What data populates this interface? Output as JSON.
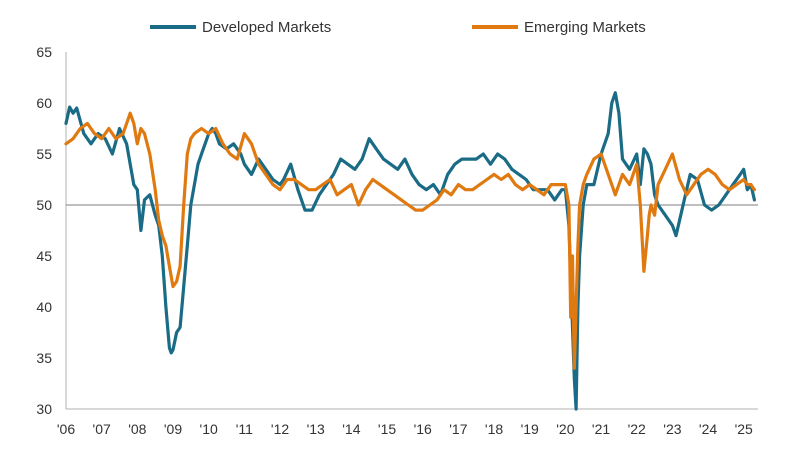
{
  "chart_data": {
    "type": "line",
    "title": "",
    "xlabel": "",
    "ylabel": "",
    "ylim": [
      30,
      65
    ],
    "xlim": [
      2006,
      2025.4
    ],
    "reference_line": 50,
    "y_ticks": [
      30,
      35,
      40,
      45,
      50,
      55,
      60,
      65
    ],
    "x_ticks": [
      {
        "value": 2006,
        "label": "'06"
      },
      {
        "value": 2007,
        "label": "'07"
      },
      {
        "value": 2008,
        "label": "'08"
      },
      {
        "value": 2009,
        "label": "'09"
      },
      {
        "value": 2010,
        "label": "'10"
      },
      {
        "value": 2011,
        "label": "'11"
      },
      {
        "value": 2012,
        "label": "'12"
      },
      {
        "value": 2013,
        "label": "'13"
      },
      {
        "value": 2014,
        "label": "'14"
      },
      {
        "value": 2015,
        "label": "'15"
      },
      {
        "value": 2016,
        "label": "'16"
      },
      {
        "value": 2017,
        "label": "'17"
      },
      {
        "value": 2018,
        "label": "'18"
      },
      {
        "value": 2019,
        "label": "'19"
      },
      {
        "value": 2020,
        "label": "'20"
      },
      {
        "value": 2021,
        "label": "'21"
      },
      {
        "value": 2022,
        "label": "'22"
      },
      {
        "value": 2023,
        "label": "'23"
      },
      {
        "value": 2024,
        "label": "'24"
      },
      {
        "value": 2025,
        "label": "'25"
      }
    ],
    "legend_position": "top-center",
    "series": [
      {
        "name": "Developed Markets",
        "color": "#1a6b86",
        "x": [
          2006.0,
          2006.1,
          2006.2,
          2006.3,
          2006.5,
          2006.7,
          2006.9,
          2007.1,
          2007.3,
          2007.5,
          2007.7,
          2007.8,
          2007.9,
          2008.0,
          2008.1,
          2008.2,
          2008.35,
          2008.5,
          2008.6,
          2008.7,
          2008.8,
          2008.9,
          2008.95,
          2009.0,
          2009.1,
          2009.2,
          2009.3,
          2009.4,
          2009.5,
          2009.6,
          2009.7,
          2009.8,
          2009.9,
          2010.0,
          2010.1,
          2010.2,
          2010.3,
          2010.5,
          2010.7,
          2010.9,
          2011.0,
          2011.2,
          2011.4,
          2011.6,
          2011.8,
          2012.0,
          2012.1,
          2012.3,
          2012.5,
          2012.7,
          2012.9,
          2013.1,
          2013.3,
          2013.5,
          2013.7,
          2013.9,
          2014.1,
          2014.3,
          2014.5,
          2014.7,
          2014.9,
          2015.1,
          2015.3,
          2015.5,
          2015.7,
          2015.9,
          2016.1,
          2016.3,
          2016.5,
          2016.7,
          2016.9,
          2017.1,
          2017.3,
          2017.5,
          2017.7,
          2017.9,
          2018.1,
          2018.3,
          2018.5,
          2018.7,
          2018.9,
          2019.1,
          2019.3,
          2019.5,
          2019.7,
          2019.9,
          2020.0,
          2020.1,
          2020.2,
          2020.25,
          2020.3,
          2020.35,
          2020.4,
          2020.5,
          2020.6,
          2020.8,
          2021.0,
          2021.2,
          2021.3,
          2021.4,
          2021.5,
          2021.6,
          2021.8,
          2022.0,
          2022.1,
          2022.2,
          2022.3,
          2022.4,
          2022.5,
          2022.6,
          2022.8,
          2023.0,
          2023.1,
          2023.3,
          2023.5,
          2023.7,
          2023.9,
          2024.1,
          2024.3,
          2024.5,
          2024.7,
          2024.9,
          2025.0,
          2025.1,
          2025.2,
          2025.3
        ],
        "values": [
          58.0,
          59.6,
          59.0,
          59.5,
          57.0,
          56.0,
          57.0,
          56.5,
          55.0,
          57.5,
          56.0,
          54.0,
          52.0,
          51.5,
          47.5,
          50.5,
          51.0,
          49.0,
          48.0,
          45.0,
          40.0,
          36.0,
          35.5,
          35.8,
          37.5,
          38.0,
          42.0,
          46.0,
          50.0,
          52.0,
          54.0,
          55.0,
          56.0,
          57.0,
          57.5,
          57.0,
          56.0,
          55.5,
          56.0,
          55.0,
          54.0,
          53.0,
          54.5,
          53.5,
          52.5,
          52.0,
          52.5,
          54.0,
          51.5,
          49.5,
          49.5,
          51.0,
          52.0,
          53.0,
          54.5,
          54.0,
          53.5,
          54.5,
          56.5,
          55.5,
          54.5,
          54.0,
          53.5,
          54.5,
          53.0,
          52.0,
          51.5,
          52.0,
          51.0,
          53.0,
          54.0,
          54.5,
          54.5,
          54.5,
          55.0,
          54.0,
          55.0,
          54.5,
          53.5,
          53.0,
          52.5,
          51.5,
          51.5,
          51.5,
          50.5,
          51.5,
          51.5,
          48.0,
          38.0,
          33.0,
          30.0,
          40.0,
          45.0,
          50.0,
          52.0,
          52.0,
          55.0,
          57.0,
          60.0,
          61.0,
          59.0,
          54.5,
          53.5,
          55.0,
          52.0,
          55.5,
          55.0,
          54.0,
          51.0,
          50.0,
          49.0,
          48.0,
          47.0,
          50.0,
          53.0,
          52.5,
          50.0,
          49.5,
          50.0,
          51.0,
          52.0,
          53.0,
          53.5,
          51.5,
          52.0,
          50.5
        ]
      },
      {
        "name": "Emerging Markets",
        "color": "#e07a10",
        "x": [
          2006.0,
          2006.2,
          2006.4,
          2006.6,
          2006.8,
          2007.0,
          2007.2,
          2007.4,
          2007.6,
          2007.8,
          2007.9,
          2008.0,
          2008.1,
          2008.2,
          2008.35,
          2008.5,
          2008.6,
          2008.7,
          2008.8,
          2008.9,
          2009.0,
          2009.1,
          2009.2,
          2009.3,
          2009.4,
          2009.5,
          2009.6,
          2009.8,
          2010.0,
          2010.2,
          2010.4,
          2010.6,
          2010.8,
          2011.0,
          2011.2,
          2011.4,
          2011.6,
          2011.8,
          2012.0,
          2012.2,
          2012.4,
          2012.6,
          2012.8,
          2013.0,
          2013.2,
          2013.4,
          2013.6,
          2013.8,
          2014.0,
          2014.2,
          2014.4,
          2014.6,
          2014.8,
          2015.0,
          2015.2,
          2015.4,
          2015.6,
          2015.8,
          2016.0,
          2016.2,
          2016.4,
          2016.6,
          2016.8,
          2017.0,
          2017.2,
          2017.4,
          2017.6,
          2017.8,
          2018.0,
          2018.2,
          2018.4,
          2018.6,
          2018.8,
          2019.0,
          2019.2,
          2019.4,
          2019.6,
          2019.8,
          2020.0,
          2020.1,
          2020.15,
          2020.2,
          2020.25,
          2020.3,
          2020.35,
          2020.4,
          2020.5,
          2020.6,
          2020.8,
          2021.0,
          2021.2,
          2021.4,
          2021.6,
          2021.8,
          2022.0,
          2022.1,
          2022.2,
          2022.3,
          2022.35,
          2022.4,
          2022.5,
          2022.6,
          2022.8,
          2023.0,
          2023.2,
          2023.4,
          2023.6,
          2023.8,
          2024.0,
          2024.2,
          2024.4,
          2024.6,
          2024.8,
          2025.0,
          2025.1,
          2025.2,
          2025.3
        ],
        "values": [
          56.0,
          56.5,
          57.5,
          58.0,
          57.0,
          56.5,
          57.5,
          56.5,
          57.0,
          59.0,
          58.0,
          56.0,
          57.5,
          57.0,
          55.0,
          51.5,
          48.5,
          47.0,
          46.0,
          44.0,
          42.0,
          42.5,
          44.0,
          50.0,
          55.0,
          56.5,
          57.0,
          57.5,
          57.0,
          57.5,
          56.0,
          55.0,
          54.5,
          57.0,
          56.0,
          54.0,
          53.0,
          52.0,
          51.5,
          52.5,
          52.5,
          52.0,
          51.5,
          51.5,
          52.0,
          52.5,
          51.0,
          51.5,
          52.0,
          50.0,
          51.5,
          52.5,
          52.0,
          51.5,
          51.0,
          50.5,
          50.0,
          49.5,
          49.5,
          50.0,
          50.5,
          51.5,
          51.0,
          52.0,
          51.5,
          51.5,
          52.0,
          52.5,
          53.0,
          52.5,
          53.0,
          52.0,
          51.5,
          52.0,
          51.5,
          51.0,
          52.0,
          52.0,
          52.0,
          50.0,
          39.0,
          45.0,
          34.0,
          40.0,
          46.0,
          50.0,
          52.0,
          53.0,
          54.5,
          55.0,
          53.0,
          51.0,
          53.0,
          52.0,
          54.0,
          50.0,
          43.5,
          47.0,
          49.0,
          50.0,
          49.0,
          52.0,
          53.5,
          55.0,
          52.5,
          51.0,
          52.0,
          53.0,
          53.5,
          53.0,
          52.0,
          51.5,
          52.0,
          52.5,
          52.0,
          52.0,
          51.5
        ]
      }
    ]
  }
}
